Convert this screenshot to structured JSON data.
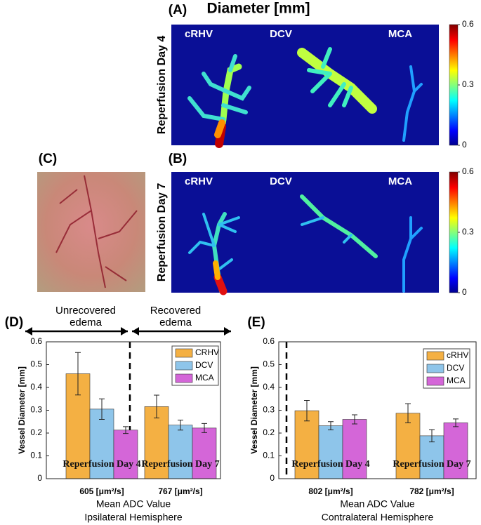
{
  "figure": {
    "title": "Diameter [mm]",
    "panels": [
      {
        "label": "(A)",
        "row_label": "Reperfusion Day 4",
        "vessels": [
          "cRHV",
          "DCV",
          "MCA"
        ],
        "colorbar": {
          "lim": [
            0,
            0.6
          ],
          "ticks": [
            0,
            0.3,
            0.6
          ]
        }
      },
      {
        "label": "(B)",
        "row_label": "Reperfusion Day 7",
        "vessels": [
          "cRHV",
          "DCV",
          "MCA"
        ],
        "colorbar": {
          "lim": [
            0,
            0.6
          ],
          "ticks": [
            0,
            0.3,
            0.6
          ]
        }
      },
      {
        "label": "(C)"
      }
    ]
  },
  "chart_data": [
    {
      "type": "bar",
      "label": "(D)",
      "ylabel": "Vessel Diameter [mm]",
      "xlabel": "Mean ADC Value",
      "subtitle": "Ipsilateral Hemisphere",
      "regions": [
        "Unrecovered edema",
        "Recovered edema"
      ],
      "categories": [
        "605 [μm²/s]",
        "767 [μm²/s]"
      ],
      "annotations": [
        "Reperfusion Day 4",
        "Reperfusion Day 7"
      ],
      "series": [
        {
          "name": "CRHV",
          "color": "#f4b043",
          "values": [
            0.46,
            0.316
          ],
          "errors": [
            0.093,
            0.05
          ]
        },
        {
          "name": "DCV",
          "color": "#8ec5ea",
          "values": [
            0.305,
            0.235
          ],
          "errors": [
            0.045,
            0.022
          ]
        },
        {
          "name": "MCA",
          "color": "#d466d8",
          "values": [
            0.213,
            0.222
          ],
          "errors": [
            0.015,
            0.02
          ]
        }
      ],
      "ylim": [
        0,
        0.6
      ],
      "yticks": [
        0,
        0.1,
        0.2,
        0.3,
        0.4,
        0.5,
        0.6
      ]
    },
    {
      "type": "bar",
      "label": "(E)",
      "ylabel": "Vessel Diameter [mm]",
      "xlabel": "Mean ADC Value",
      "subtitle": "Contralateral Hemisphere",
      "categories": [
        "802 [μm²/s]",
        "782 [μm²/s]"
      ],
      "annotations": [
        "Reperfusion Day 4",
        "Reperfusion Day 7"
      ],
      "series": [
        {
          "name": "cRHV",
          "color": "#f4b043",
          "values": [
            0.298,
            0.287
          ],
          "errors": [
            0.045,
            0.042
          ]
        },
        {
          "name": "DCV",
          "color": "#8ec5ea",
          "values": [
            0.232,
            0.188
          ],
          "errors": [
            0.018,
            0.027
          ]
        },
        {
          "name": "MCA",
          "color": "#d466d8",
          "values": [
            0.26,
            0.245
          ],
          "errors": [
            0.02,
            0.017
          ]
        }
      ],
      "ylim": [
        0,
        0.6
      ],
      "yticks": [
        0,
        0.1,
        0.2,
        0.3,
        0.4,
        0.5,
        0.6
      ]
    }
  ]
}
